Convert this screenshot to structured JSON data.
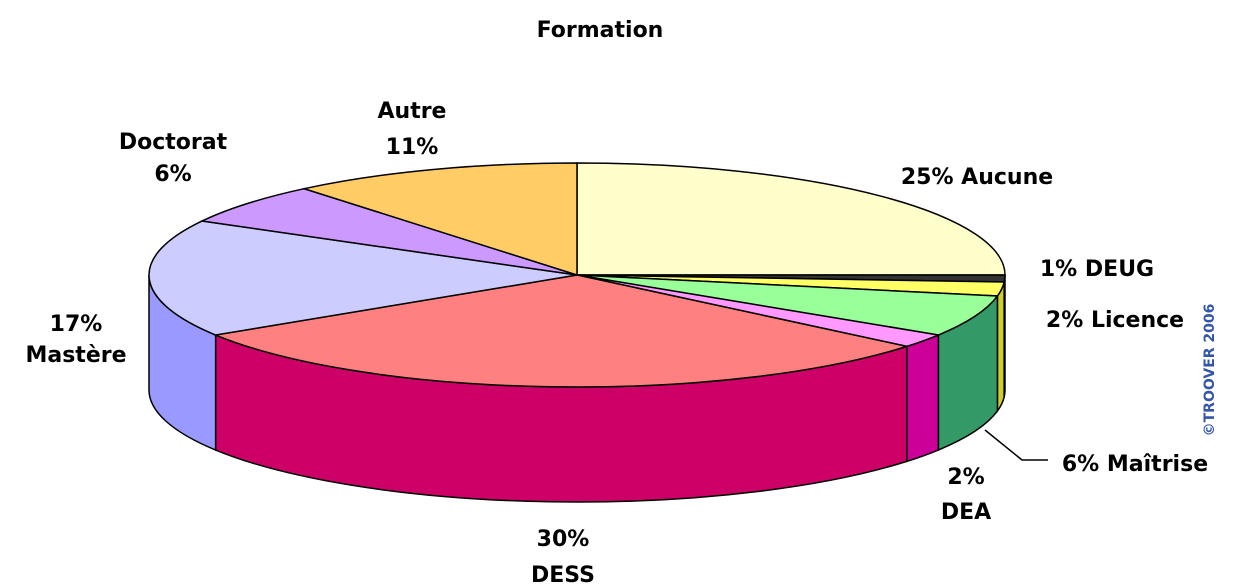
{
  "chart_data": {
    "type": "pie3d",
    "title": "Formation",
    "categories": [
      "Aucune",
      "DEUG",
      "Licence",
      "Maîtrise",
      "DEA",
      "DESS",
      "Mastère",
      "Doctorat",
      "Autre"
    ],
    "values": [
      25,
      1,
      2,
      6,
      2,
      30,
      17,
      6,
      11
    ],
    "value_labels": [
      "25%",
      "1%",
      "2%",
      "6%",
      "2%",
      "30%",
      "17%",
      "6%",
      "11%"
    ],
    "colors": [
      "#ffffcc",
      "#333333",
      "#ffff66",
      "#99ff99",
      "#ff99ff",
      "#ff8080",
      "#ccccff",
      "#cc99ff",
      "#ffcc66"
    ],
    "side_colors": [
      "#cccc99",
      "#222222",
      "#cccc33",
      "#339966",
      "#cc0099",
      "#cc0066",
      "#9999ff",
      "#9966cc",
      "#cc9933"
    ],
    "watermark": "©TROOVER 2006"
  }
}
